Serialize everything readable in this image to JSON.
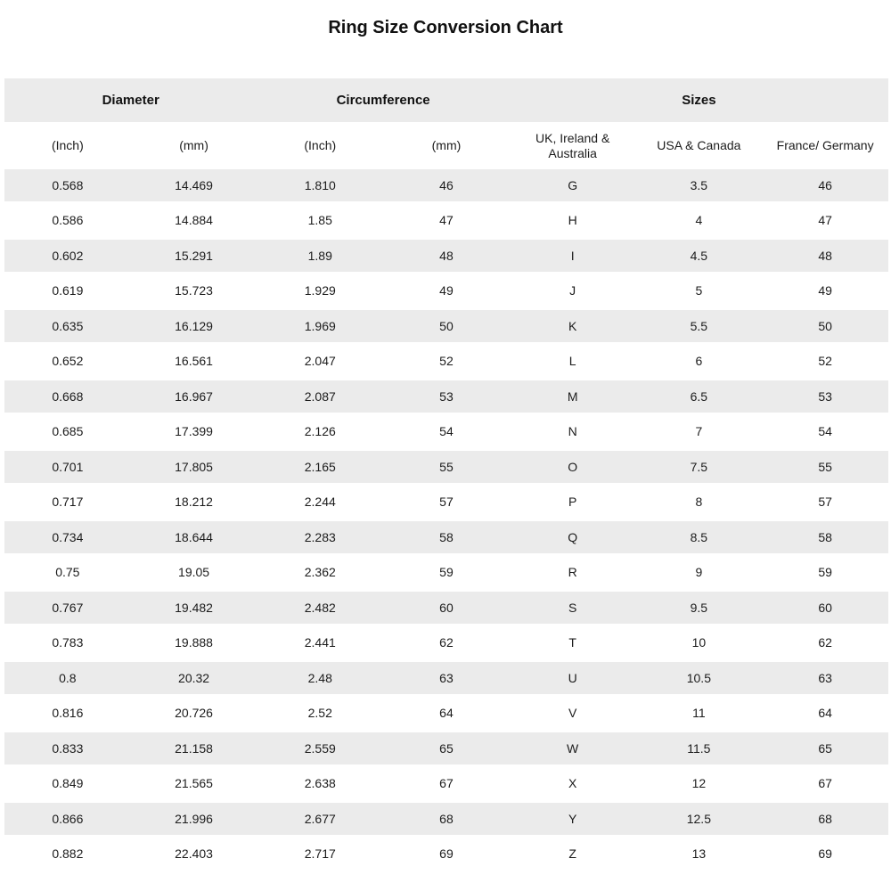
{
  "page": {
    "title": "Ring Size Conversion Chart"
  },
  "colors": {
    "background": "#ffffff",
    "stripe": "#ebebeb",
    "text": "#1c1c1c"
  },
  "chart_data": {
    "type": "table",
    "title": "Ring Size Conversion Chart",
    "column_groups": [
      {
        "label": "Diameter",
        "span": 2
      },
      {
        "label": "Circumference",
        "span": 2
      },
      {
        "label": "Sizes",
        "span": 3
      }
    ],
    "columns": [
      "(Inch)",
      "(mm)",
      "(Inch)",
      "(mm)",
      "UK, Ireland & Australia",
      "USA & Canada",
      "France/ Germany"
    ],
    "rows": [
      [
        "0.568",
        "14.469",
        "1.810",
        "46",
        "G",
        "3.5",
        "46"
      ],
      [
        "0.586",
        "14.884",
        "1.85",
        "47",
        "H",
        "4",
        "47"
      ],
      [
        "0.602",
        "15.291",
        "1.89",
        "48",
        "I",
        "4.5",
        "48"
      ],
      [
        "0.619",
        "15.723",
        "1.929",
        "49",
        "J",
        "5",
        "49"
      ],
      [
        "0.635",
        "16.129",
        "1.969",
        "50",
        "K",
        "5.5",
        "50"
      ],
      [
        "0.652",
        "16.561",
        "2.047",
        "52",
        "L",
        "6",
        "52"
      ],
      [
        "0.668",
        "16.967",
        "2.087",
        "53",
        "M",
        "6.5",
        "53"
      ],
      [
        "0.685",
        "17.399",
        "2.126",
        "54",
        "N",
        "7",
        "54"
      ],
      [
        "0.701",
        "17.805",
        "2.165",
        "55",
        "O",
        "7.5",
        "55"
      ],
      [
        "0.717",
        "18.212",
        "2.244",
        "57",
        "P",
        "8",
        "57"
      ],
      [
        "0.734",
        "18.644",
        "2.283",
        "58",
        "Q",
        "8.5",
        "58"
      ],
      [
        "0.75",
        "19.05",
        "2.362",
        "59",
        "R",
        "9",
        "59"
      ],
      [
        "0.767",
        "19.482",
        "2.482",
        "60",
        "S",
        "9.5",
        "60"
      ],
      [
        "0.783",
        "19.888",
        "2.441",
        "62",
        "T",
        "10",
        "62"
      ],
      [
        "0.8",
        "20.32",
        "2.48",
        "63",
        "U",
        "10.5",
        "63"
      ],
      [
        "0.816",
        "20.726",
        "2.52",
        "64",
        "V",
        "11",
        "64"
      ],
      [
        "0.833",
        "21.158",
        "2.559",
        "65",
        "W",
        "11.5",
        "65"
      ],
      [
        "0.849",
        "21.565",
        "2.638",
        "67",
        "X",
        "12",
        "67"
      ],
      [
        "0.866",
        "21.996",
        "2.677",
        "68",
        "Y",
        "12.5",
        "68"
      ],
      [
        "0.882",
        "22.403",
        "2.717",
        "69",
        "Z",
        "13",
        "69"
      ]
    ]
  }
}
